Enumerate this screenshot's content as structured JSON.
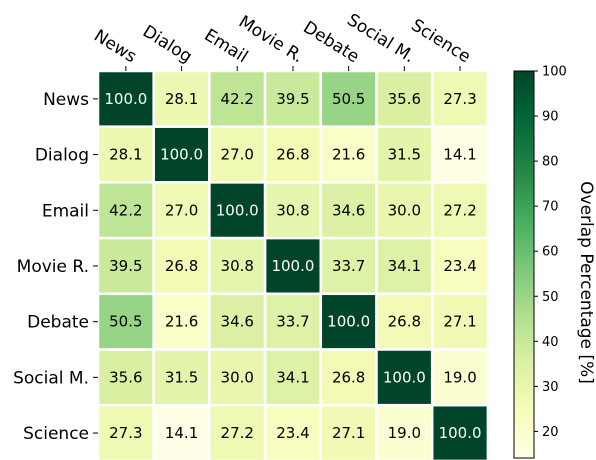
{
  "chart_data": {
    "type": "heatmap",
    "x_labels": [
      "News",
      "Dialog",
      "Email",
      "Movie R.",
      "Debate",
      "Social M.",
      "Science"
    ],
    "y_labels": [
      "News",
      "Dialog",
      "Email",
      "Movie R.",
      "Debate",
      "Social M.",
      "Science"
    ],
    "values": [
      [
        100.0,
        28.1,
        42.2,
        39.5,
        50.5,
        35.6,
        27.3
      ],
      [
        28.1,
        100.0,
        27.0,
        26.8,
        21.6,
        31.5,
        14.1
      ],
      [
        42.2,
        27.0,
        100.0,
        30.8,
        34.6,
        30.0,
        27.2
      ],
      [
        39.5,
        26.8,
        30.8,
        100.0,
        33.7,
        34.1,
        23.4
      ],
      [
        50.5,
        21.6,
        34.6,
        33.7,
        100.0,
        26.8,
        27.1
      ],
      [
        35.6,
        31.5,
        30.0,
        34.1,
        26.8,
        100.0,
        19.0
      ],
      [
        27.3,
        14.1,
        27.2,
        23.4,
        27.1,
        19.0,
        100.0
      ]
    ],
    "cell_labels": [
      [
        "100.0",
        "28.1",
        "42.2",
        "39.5",
        "50.5",
        "35.6",
        "27.3"
      ],
      [
        "28.1",
        "100.0",
        "27.0",
        "26.8",
        "21.6",
        "31.5",
        "14.1"
      ],
      [
        "42.2",
        "27.0",
        "100.0",
        "30.8",
        "34.6",
        "30.0",
        "27.2"
      ],
      [
        "39.5",
        "26.8",
        "30.8",
        "100.0",
        "33.7",
        "34.1",
        "23.4"
      ],
      [
        "50.5",
        "21.6",
        "34.6",
        "33.7",
        "100.0",
        "26.8",
        "27.1"
      ],
      [
        "35.6",
        "31.5",
        "30.0",
        "34.1",
        "26.8",
        "100.0",
        "19.0"
      ],
      [
        "27.3",
        "14.1",
        "27.2",
        "23.4",
        "27.1",
        "19.0",
        "100.0"
      ]
    ],
    "colorbar": {
      "label": "Overlap Percentage [%]",
      "range": [
        14.1,
        100
      ],
      "ticks": [
        "20",
        "30",
        "40",
        "50",
        "60",
        "70",
        "80",
        "90",
        "100"
      ],
      "colormap": "YlGn"
    },
    "x_axis_position": "top",
    "grid": false
  }
}
